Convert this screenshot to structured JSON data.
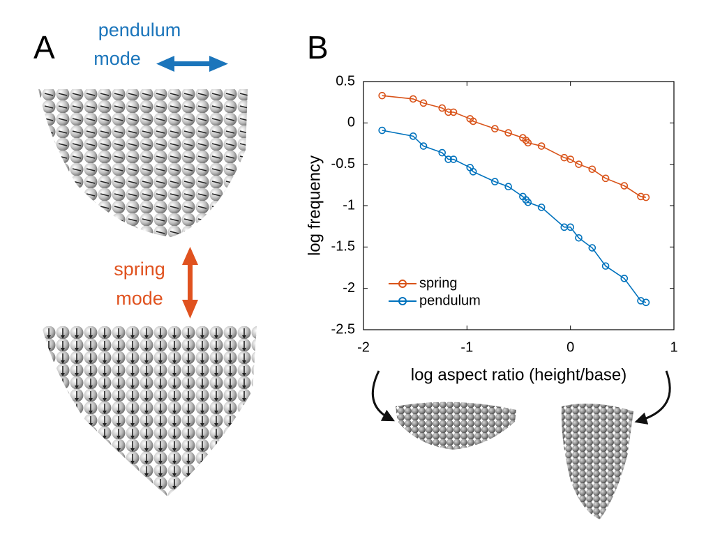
{
  "panel_a": {
    "label": "A",
    "top_mode": [
      "pendulum",
      "mode"
    ],
    "bottom_mode": [
      "spring",
      "mode"
    ]
  },
  "panel_b_label": "B",
  "chart_data": {
    "type": "line",
    "xlabel": "log aspect ratio (height/base)",
    "ylabel": "log frequency",
    "x": [
      -1.82,
      -1.52,
      -1.42,
      -1.24,
      -1.18,
      -1.13,
      -0.97,
      -0.94,
      -0.73,
      -0.6,
      -0.46,
      -0.43,
      -0.41,
      -0.28,
      -0.06,
      0.0,
      0.08,
      0.21,
      0.34,
      0.52,
      0.68,
      0.73
    ],
    "series": [
      {
        "name": "spring",
        "color": "#d95319",
        "values": [
          0.33,
          0.29,
          0.24,
          0.18,
          0.13,
          0.13,
          0.05,
          0.02,
          -0.07,
          -0.12,
          -0.18,
          -0.21,
          -0.24,
          -0.28,
          -0.42,
          -0.44,
          -0.5,
          -0.56,
          -0.67,
          -0.76,
          -0.89,
          -0.9
        ]
      },
      {
        "name": "pendulum",
        "color": "#0072bd",
        "values": [
          -0.09,
          -0.16,
          -0.28,
          -0.36,
          -0.44,
          -0.44,
          -0.54,
          -0.59,
          -0.71,
          -0.77,
          -0.89,
          -0.93,
          -0.96,
          -1.02,
          -1.26,
          -1.26,
          -1.39,
          -1.51,
          -1.73,
          -1.88,
          -2.15,
          -2.17
        ]
      }
    ],
    "xlim": [
      -2,
      1
    ],
    "xticks": [
      -2,
      -1,
      0,
      1
    ],
    "ylim": [
      -2.5,
      0.5
    ],
    "yticks": [
      0.5,
      0,
      -0.5,
      -1,
      {
        "value": -1.5,
        "label": "-1.5"
      },
      -2,
      -2.5
    ],
    "legend": "lower left",
    "grid": false
  }
}
